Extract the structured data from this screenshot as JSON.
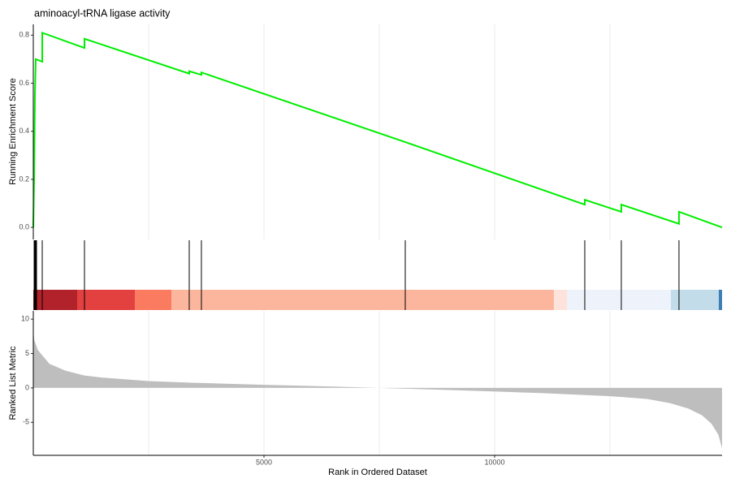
{
  "chart_data": [
    {
      "type": "line",
      "title": "aminoacyl-tRNA ligase activity",
      "ylabel": "Running Enrichment Score",
      "x": [
        0,
        18,
        35,
        53,
        194,
        194,
        1109,
        1109,
        3380,
        3380,
        3644,
        3644,
        8063,
        11954,
        11954,
        12746,
        12746,
        13996,
        13996,
        14930
      ],
      "values": [
        0,
        0.2,
        0.55,
        0.7,
        0.69,
        0.81,
        0.747,
        0.785,
        0.64,
        0.65,
        0.635,
        0.645,
        0.355,
        0.095,
        0.115,
        0.065,
        0.095,
        0.015,
        0.065,
        0.0
      ],
      "color": "#00ee00",
      "xlim": [
        0,
        14930
      ],
      "ylim": [
        -0.05,
        0.845
      ],
      "yticks": [
        {
          "value": 0,
          "label": "0.0"
        },
        0.2,
        0.4,
        0.6,
        0.8
      ],
      "xgrid": [
        2500,
        5000,
        7500,
        10000,
        12500
      ]
    },
    {
      "type": "rug",
      "x": [
        18,
        35,
        53,
        70,
        194,
        1109,
        3380,
        3644,
        8063,
        11954,
        12746,
        13996
      ],
      "color": "#000000",
      "xlim": [
        0,
        14930
      ],
      "bands": [
        {
          "start": 0,
          "end": 951,
          "color": "#b2222a"
        },
        {
          "start": 951,
          "end": 2201,
          "color": "#e34040"
        },
        {
          "start": 2201,
          "end": 2993,
          "color": "#fb7b61"
        },
        {
          "start": 2993,
          "end": 11285,
          "color": "#fdb69e"
        },
        {
          "start": 11285,
          "end": 11567,
          "color": "#fde3dc"
        },
        {
          "start": 11567,
          "end": 13820,
          "color": "#eef3fb"
        },
        {
          "start": 13820,
          "end": 14859,
          "color": "#c2dcea"
        },
        {
          "start": 14859,
          "end": 14930,
          "color": "#3b7fb5"
        }
      ]
    },
    {
      "type": "area",
      "ylabel": "Ranked List Metric",
      "xlabel": "Rank in Ordered Dataset",
      "x": [
        0,
        20,
        100,
        350,
        700,
        1109,
        1500,
        2500,
        3500,
        5000,
        6500,
        7400,
        8000,
        9500,
        11000,
        12500,
        13300,
        13800,
        14200,
        14500,
        14700,
        14850,
        14930
      ],
      "values": [
        8.3,
        7,
        5.5,
        3.5,
        2.5,
        1.8,
        1.5,
        1.0,
        0.75,
        0.45,
        0.2,
        0.02,
        -0.1,
        -0.4,
        -0.75,
        -1.2,
        -1.6,
        -2.2,
        -3,
        -4,
        -5.2,
        -6.8,
        -8.8
      ],
      "color": "#bebebe",
      "xlim": [
        0,
        14930
      ],
      "ylim": [
        -9.8,
        11.2
      ],
      "yticks": [
        10,
        5,
        0,
        -5
      ],
      "xticks": [
        5000,
        10000
      ],
      "xgrid": [
        2500,
        5000,
        7500,
        10000,
        12500
      ]
    }
  ]
}
